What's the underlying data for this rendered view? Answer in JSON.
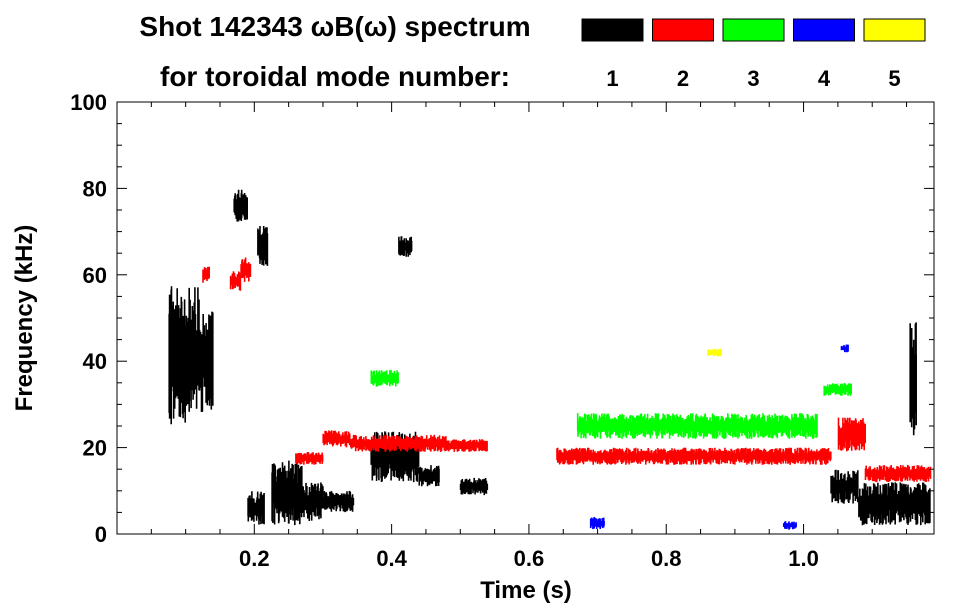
{
  "chart_data": {
    "type": "heatmap",
    "title": "Shot 142343 ωB(ω) spectrum",
    "subtitle": "for toroidal mode number:",
    "xlabel": "Time (s)",
    "ylabel": "Frequency (kHz)",
    "xlim": [
      0.0,
      1.19
    ],
    "ylim": [
      0,
      100
    ],
    "xticks": [
      {
        "value": 0.2,
        "label": "0.2"
      },
      {
        "value": 0.4,
        "label": "0.4"
      },
      {
        "value": 0.6,
        "label": "0.6"
      },
      {
        "value": 0.8,
        "label": "0.8"
      },
      {
        "value": 1.0,
        "label": "1.0"
      }
    ],
    "yticks": [
      {
        "value": 0,
        "label": "0"
      },
      {
        "value": 20,
        "label": "20"
      },
      {
        "value": 40,
        "label": "40"
      },
      {
        "value": 60,
        "label": "60"
      },
      {
        "value": 80,
        "label": "80"
      },
      {
        "value": 100,
        "label": "100"
      }
    ],
    "legend": [
      {
        "label": "1",
        "color": "#000000"
      },
      {
        "label": "2",
        "color": "#ff0000"
      },
      {
        "label": "3",
        "color": "#00ff00"
      },
      {
        "label": "4",
        "color": "#0000ff"
      },
      {
        "label": "5",
        "color": "#ffff00"
      }
    ],
    "legend_position": "top-right",
    "series": [
      {
        "name": "1",
        "color": "#000000",
        "blobs": [
          {
            "t0": 0.075,
            "t1": 0.12,
            "f0": 25,
            "f1": 58
          },
          {
            "t0": 0.12,
            "t1": 0.14,
            "f0": 28,
            "f1": 52
          },
          {
            "t0": 0.17,
            "t1": 0.19,
            "f0": 72,
            "f1": 80
          },
          {
            "t0": 0.19,
            "t1": 0.215,
            "f0": 2,
            "f1": 10
          },
          {
            "t0": 0.205,
            "t1": 0.22,
            "f0": 62,
            "f1": 72
          },
          {
            "t0": 0.225,
            "t1": 0.27,
            "f0": 2,
            "f1": 17
          },
          {
            "t0": 0.27,
            "t1": 0.3,
            "f0": 3,
            "f1": 12
          },
          {
            "t0": 0.3,
            "t1": 0.345,
            "f0": 5,
            "f1": 10
          },
          {
            "t0": 0.37,
            "t1": 0.44,
            "f0": 12,
            "f1": 24
          },
          {
            "t0": 0.44,
            "t1": 0.47,
            "f0": 11,
            "f1": 16
          },
          {
            "t0": 0.5,
            "t1": 0.54,
            "f0": 9,
            "f1": 13
          },
          {
            "t0": 0.41,
            "t1": 0.43,
            "f0": 64,
            "f1": 69
          },
          {
            "t0": 1.04,
            "t1": 1.08,
            "f0": 7,
            "f1": 15
          },
          {
            "t0": 1.08,
            "t1": 1.185,
            "f0": 2,
            "f1": 12
          },
          {
            "t0": 1.155,
            "t1": 1.165,
            "f0": 22,
            "f1": 50
          }
        ]
      },
      {
        "name": "2",
        "color": "#ff0000",
        "blobs": [
          {
            "t0": 0.125,
            "t1": 0.135,
            "f0": 58,
            "f1": 62
          },
          {
            "t0": 0.165,
            "t1": 0.18,
            "f0": 56,
            "f1": 61
          },
          {
            "t0": 0.18,
            "t1": 0.195,
            "f0": 58,
            "f1": 64
          },
          {
            "t0": 0.26,
            "t1": 0.3,
            "f0": 16,
            "f1": 19
          },
          {
            "t0": 0.3,
            "t1": 0.34,
            "f0": 20,
            "f1": 24
          },
          {
            "t0": 0.34,
            "t1": 0.48,
            "f0": 19,
            "f1": 23
          },
          {
            "t0": 0.48,
            "t1": 0.54,
            "f0": 19,
            "f1": 22
          },
          {
            "t0": 0.64,
            "t1": 1.04,
            "f0": 16,
            "f1": 20
          },
          {
            "t0": 1.05,
            "t1": 1.09,
            "f0": 19,
            "f1": 27
          },
          {
            "t0": 1.09,
            "t1": 1.185,
            "f0": 12,
            "f1": 16
          }
        ]
      },
      {
        "name": "3",
        "color": "#00ff00",
        "blobs": [
          {
            "t0": 0.37,
            "t1": 0.41,
            "f0": 34,
            "f1": 38
          },
          {
            "t0": 0.67,
            "t1": 1.02,
            "f0": 22,
            "f1": 28
          },
          {
            "t0": 1.03,
            "t1": 1.07,
            "f0": 32,
            "f1": 35
          }
        ]
      },
      {
        "name": "4",
        "color": "#0000ff",
        "blobs": [
          {
            "t0": 0.69,
            "t1": 0.71,
            "f0": 1,
            "f1": 4
          },
          {
            "t0": 1.055,
            "t1": 1.065,
            "f0": 42,
            "f1": 44
          },
          {
            "t0": 0.97,
            "t1": 0.99,
            "f0": 1,
            "f1": 3
          }
        ]
      },
      {
        "name": "5",
        "color": "#ffff00",
        "blobs": [
          {
            "t0": 0.86,
            "t1": 0.88,
            "f0": 41,
            "f1": 43
          }
        ]
      }
    ]
  }
}
